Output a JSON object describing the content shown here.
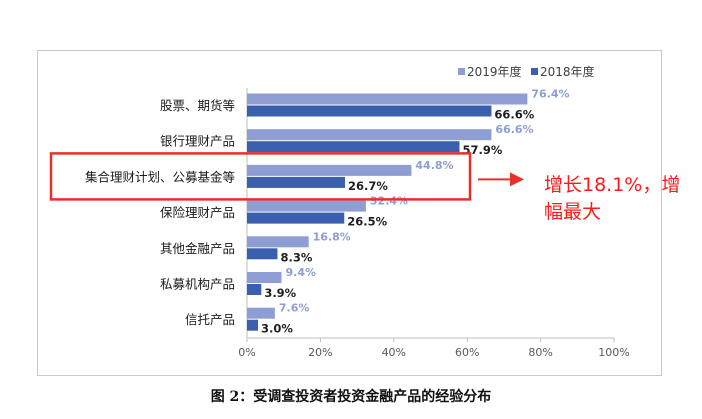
{
  "chart_data": {
    "type": "bar",
    "orientation": "horizontal",
    "title": "",
    "xlabel": "",
    "ylabel": "",
    "categories": [
      "股票、期货等",
      "银行理财产品",
      "集合理财计划、公募基金等",
      "保险理财产品",
      "其他金融产品",
      "私募机构产品",
      "信托产品"
    ],
    "series": [
      {
        "name": "2019年度",
        "values": [
          76.4,
          66.6,
          44.8,
          32.4,
          16.8,
          9.4,
          7.6
        ],
        "color": "#8e9ed4"
      },
      {
        "name": "2018年度",
        "values": [
          66.6,
          57.9,
          26.7,
          26.5,
          8.3,
          3.9,
          3.0
        ],
        "color": "#3a5fae"
      }
    ],
    "data_labels_2019": [
      "76.4%",
      "66.6%",
      "44.8%",
      "32.4%",
      "16.8%",
      "9.4%",
      "7.6%"
    ],
    "data_labels_2018": [
      "66.6%",
      "57.9%",
      "26.7%",
      "26.5%",
      "8.3%",
      "3.9%",
      "3.0%"
    ],
    "xlim": [
      0,
      100
    ],
    "xticks": [
      "0%",
      "20%",
      "40%",
      "60%",
      "80%",
      "100%"
    ],
    "legend_position": "top-right",
    "highlight_category": "集合理财计划、公募基金等",
    "highlight_color": "#e8302a"
  },
  "annotation": {
    "text": "增长18.1%，增幅最大",
    "color": "#ff1a1a"
  },
  "caption": "图 2：受调查投资者投资金融产品的经验分布"
}
